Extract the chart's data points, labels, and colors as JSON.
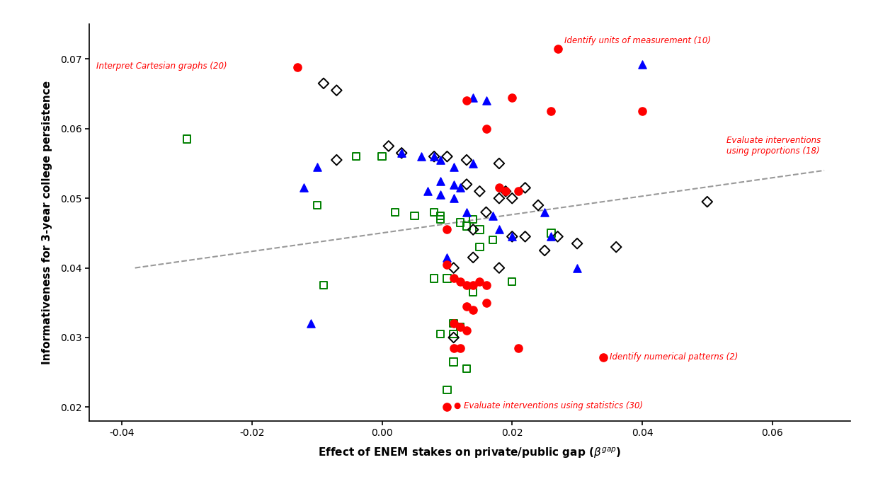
{
  "xlim": [
    -0.045,
    0.072
  ],
  "ylim": [
    0.018,
    0.075
  ],
  "xticks": [
    -0.04,
    -0.02,
    0.0,
    0.02,
    0.04,
    0.06
  ],
  "yticks": [
    0.02,
    0.03,
    0.04,
    0.05,
    0.06,
    0.07
  ],
  "trend_x": [
    -0.038,
    0.068
  ],
  "trend_y": [
    0.04,
    0.054
  ],
  "background_color": "#ffffff",
  "red_circles": [
    [
      -0.013,
      0.0688
    ],
    [
      0.027,
      0.0715
    ],
    [
      0.013,
      0.064
    ],
    [
      0.02,
      0.0645
    ],
    [
      0.026,
      0.0625
    ],
    [
      0.04,
      0.0625
    ],
    [
      0.016,
      0.06
    ],
    [
      0.018,
      0.0515
    ],
    [
      0.019,
      0.051
    ],
    [
      0.021,
      0.051
    ],
    [
      0.01,
      0.0455
    ],
    [
      0.01,
      0.0405
    ],
    [
      0.011,
      0.0385
    ],
    [
      0.012,
      0.038
    ],
    [
      0.013,
      0.0375
    ],
    [
      0.014,
      0.0375
    ],
    [
      0.015,
      0.038
    ],
    [
      0.016,
      0.0375
    ],
    [
      0.013,
      0.0345
    ],
    [
      0.014,
      0.034
    ],
    [
      0.016,
      0.035
    ],
    [
      0.011,
      0.032
    ],
    [
      0.012,
      0.0315
    ],
    [
      0.013,
      0.031
    ],
    [
      0.011,
      0.0285
    ],
    [
      0.012,
      0.0285
    ],
    [
      0.021,
      0.0285
    ],
    [
      0.034,
      0.0272
    ],
    [
      0.01,
      0.02
    ]
  ],
  "blue_triangles": [
    [
      0.04,
      0.0692
    ],
    [
      0.014,
      0.0645
    ],
    [
      0.016,
      0.064
    ],
    [
      -0.01,
      0.0545
    ],
    [
      -0.012,
      0.0515
    ],
    [
      0.003,
      0.0565
    ],
    [
      0.006,
      0.056
    ],
    [
      0.008,
      0.056
    ],
    [
      0.009,
      0.0555
    ],
    [
      0.011,
      0.0545
    ],
    [
      0.014,
      0.055
    ],
    [
      0.009,
      0.0525
    ],
    [
      0.011,
      0.052
    ],
    [
      0.012,
      0.0515
    ],
    [
      0.007,
      0.051
    ],
    [
      0.009,
      0.0505
    ],
    [
      0.011,
      0.05
    ],
    [
      0.013,
      0.048
    ],
    [
      0.017,
      0.0475
    ],
    [
      0.025,
      0.048
    ],
    [
      0.018,
      0.0455
    ],
    [
      0.02,
      0.0445
    ],
    [
      0.01,
      0.0415
    ],
    [
      0.026,
      0.0445
    ],
    [
      0.03,
      0.04
    ],
    [
      -0.011,
      0.032
    ]
  ],
  "green_squares": [
    [
      -0.03,
      0.0585
    ],
    [
      -0.004,
      0.056
    ],
    [
      0.0,
      0.056
    ],
    [
      -0.01,
      0.049
    ],
    [
      0.002,
      0.048
    ],
    [
      0.005,
      0.0475
    ],
    [
      0.008,
      0.048
    ],
    [
      0.009,
      0.0475
    ],
    [
      0.009,
      0.047
    ],
    [
      0.012,
      0.0465
    ],
    [
      0.013,
      0.046
    ],
    [
      0.015,
      0.0455
    ],
    [
      0.014,
      0.047
    ],
    [
      0.017,
      0.044
    ],
    [
      0.026,
      0.045
    ],
    [
      0.015,
      0.043
    ],
    [
      0.008,
      0.0385
    ],
    [
      0.01,
      0.0385
    ],
    [
      0.014,
      0.0365
    ],
    [
      -0.009,
      0.0375
    ],
    [
      0.011,
      0.032
    ],
    [
      0.012,
      0.0315
    ],
    [
      0.02,
      0.038
    ],
    [
      0.009,
      0.0305
    ],
    [
      0.011,
      0.0305
    ],
    [
      0.011,
      0.0265
    ],
    [
      0.013,
      0.0255
    ],
    [
      0.01,
      0.0225
    ]
  ],
  "black_diamonds": [
    [
      -0.009,
      0.0665
    ],
    [
      -0.007,
      0.0655
    ],
    [
      0.001,
      0.0575
    ],
    [
      0.003,
      0.0565
    ],
    [
      -0.007,
      0.0555
    ],
    [
      0.008,
      0.056
    ],
    [
      0.01,
      0.056
    ],
    [
      0.013,
      0.0555
    ],
    [
      0.018,
      0.055
    ],
    [
      0.013,
      0.052
    ],
    [
      0.015,
      0.051
    ],
    [
      0.019,
      0.051
    ],
    [
      0.022,
      0.0515
    ],
    [
      0.018,
      0.05
    ],
    [
      0.02,
      0.05
    ],
    [
      0.016,
      0.048
    ],
    [
      0.024,
      0.049
    ],
    [
      0.014,
      0.0455
    ],
    [
      0.02,
      0.0445
    ],
    [
      0.022,
      0.0445
    ],
    [
      0.027,
      0.0445
    ],
    [
      0.03,
      0.0435
    ],
    [
      0.025,
      0.0425
    ],
    [
      0.014,
      0.0415
    ],
    [
      0.011,
      0.04
    ],
    [
      0.018,
      0.04
    ],
    [
      0.05,
      0.0495
    ],
    [
      0.036,
      0.043
    ],
    [
      0.011,
      0.03
    ]
  ]
}
